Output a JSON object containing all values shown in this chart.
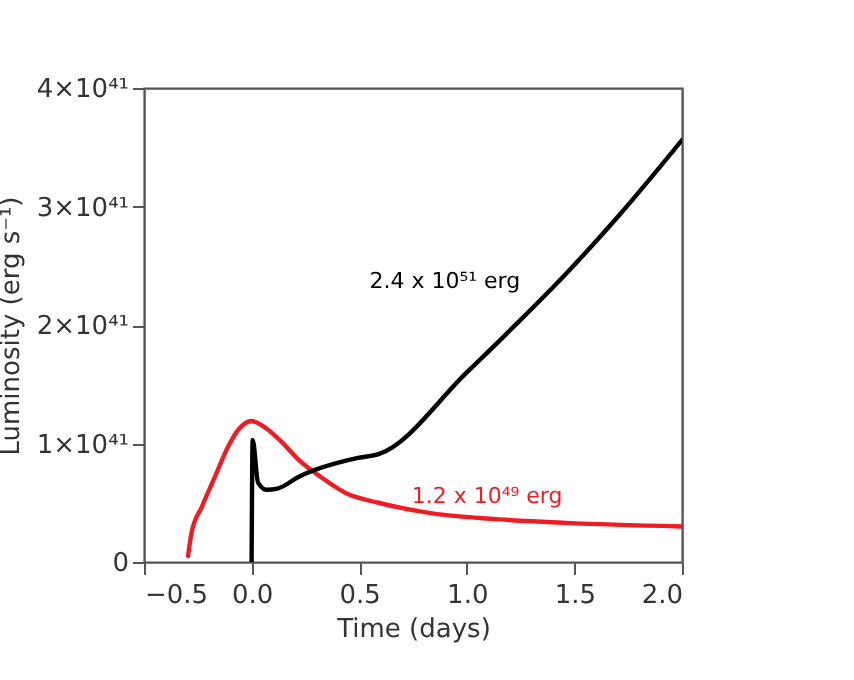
{
  "chart_data": {
    "type": "line",
    "xlabel": "Time (days)",
    "ylabel": "Luminosity (erg s⁻¹)",
    "xlim": [
      -0.5,
      2.0
    ],
    "xticks": [
      {
        "value": -0.5,
        "label": "−0.5"
      },
      {
        "value": 0,
        "label": "0.0"
      },
      {
        "value": 0.5,
        "label": "0.5"
      },
      {
        "value": 1,
        "label": "1.0"
      },
      {
        "value": 1.5,
        "label": "1.5"
      },
      {
        "value": 2,
        "label": "2.0"
      }
    ],
    "ylim": [
      0,
      4e+41
    ],
    "yticks": [
      0,
      {
        "value": 1e+41,
        "label": "1×10⁴¹"
      },
      {
        "value": 2e+41,
        "label": "2×10⁴¹"
      },
      {
        "value": 3e+41,
        "label": "3×10⁴¹"
      },
      {
        "value": 4e+41,
        "label": "4×10⁴¹"
      }
    ],
    "line_style": "solid",
    "series": [
      {
        "name": "1.2 x 10⁴⁹ erg",
        "color": "#ee1c25",
        "x": [
          -0.295,
          -0.28,
          -0.23,
          -0.17,
          -0.11,
          -0.06,
          0.0,
          0.05,
          0.13,
          0.22,
          0.32,
          0.44,
          0.59,
          0.84,
          1.15,
          1.46,
          2.0
        ],
        "values": [
          5e+39,
          2.4e+40,
          4.7e+40,
          7.2e+40,
          9.7e+40,
          1.12e+41,
          1.19e+41,
          1.15e+41,
          1.03e+41,
          8.6e+40,
          7.2e+40,
          5.8e+40,
          5e+40,
          4.1e+40,
          3.6e+40,
          3.3e+40,
          3e+40
        ]
      },
      {
        "name": "2.4 x 10⁵¹ erg",
        "color": "#000000",
        "x": [
          0.0,
          0.005,
          0.03,
          0.07,
          0.12,
          0.22,
          0.5,
          0.59,
          1.0,
          1.22,
          1.47,
          1.71,
          2.0
        ],
        "values": [
          0,
          1.03e+41,
          6.7e+40,
          6.1e+40,
          6.2e+40,
          7.2e+40,
          8.8e+40,
          9.1e+40,
          1.6e+41,
          1.99e+41,
          2.45e+41,
          2.93e+41,
          3.56e+41
        ]
      }
    ]
  }
}
